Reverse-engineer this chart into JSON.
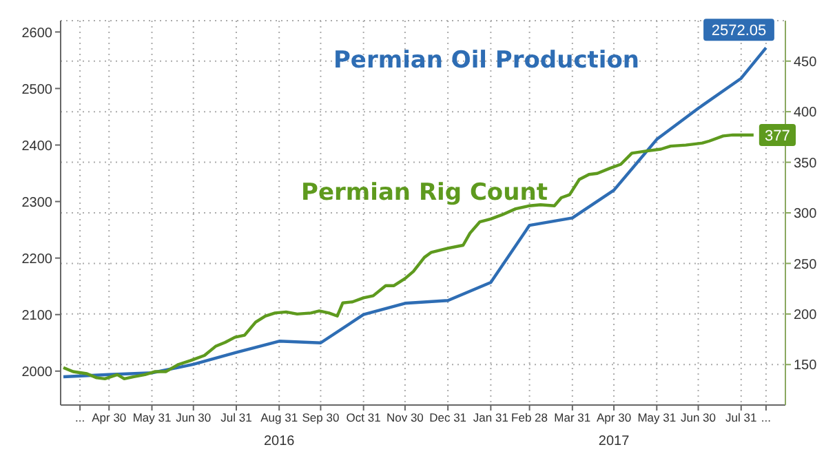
{
  "chart_data": {
    "type": "line",
    "x": [
      "2016-03-28",
      "2016-04-30",
      "2016-05-31",
      "2016-06-30",
      "2016-07-31",
      "2016-08-31",
      "2016-09-30",
      "2016-10-31",
      "2016-11-30",
      "2016-12-31",
      "2017-01-31",
      "2017-02-28",
      "2017-03-31",
      "2017-04-30",
      "2017-05-31",
      "2017-06-30",
      "2017-07-31",
      "2017-08-18"
    ],
    "series": [
      {
        "name": "Permian Oil Production",
        "color": "#2e6db4",
        "values": [
          1990,
          1994,
          1997,
          2012,
          2033,
          2053,
          2050,
          2100,
          2120,
          2125,
          2157,
          2258,
          2271,
          2320,
          2410,
          2465,
          2518,
          2572.05
        ],
        "value_labels": [
          null,
          null,
          null,
          null,
          null,
          null,
          null,
          null,
          null,
          null,
          null,
          null,
          null,
          null,
          null,
          null,
          null,
          "2572.05"
        ]
      },
      {
        "name": "Permian Rig Count",
        "color": "#5e9a1e",
        "axis": "y2",
        "x": [
          "2016-03-28",
          "2016-04-04",
          "2016-04-14",
          "2016-04-21",
          "2016-04-27",
          "2016-05-06",
          "2016-05-11",
          "2016-05-18",
          "2016-05-26",
          "2016-06-02",
          "2016-06-10",
          "2016-06-19",
          "2016-06-28",
          "2016-07-08",
          "2016-07-16",
          "2016-07-23",
          "2016-07-30",
          "2016-08-06",
          "2016-08-14",
          "2016-08-21",
          "2016-08-28",
          "2016-09-05",
          "2016-09-13",
          "2016-09-23",
          "2016-09-29",
          "2016-10-06",
          "2016-10-12",
          "2016-10-16",
          "2016-10-23",
          "2016-10-31",
          "2016-11-07",
          "2016-11-16",
          "2016-11-22",
          "2016-11-30",
          "2016-12-06",
          "2016-12-14",
          "2016-12-19",
          "2016-12-31",
          "2017-01-11",
          "2017-01-16",
          "2017-01-23",
          "2017-01-31",
          "2017-02-08",
          "2017-02-18",
          "2017-02-28",
          "2017-03-08",
          "2017-03-18",
          "2017-03-23",
          "2017-03-29",
          "2017-04-05",
          "2017-04-12",
          "2017-04-18",
          "2017-04-27",
          "2017-05-05",
          "2017-05-13",
          "2017-05-23",
          "2017-06-03",
          "2017-06-10",
          "2017-06-21",
          "2017-07-03",
          "2017-07-08",
          "2017-07-18",
          "2017-07-25",
          "2017-08-04",
          "2017-08-09"
        ],
        "values": [
          147,
          143,
          141,
          137,
          136,
          140,
          136,
          138,
          140,
          143,
          143,
          150,
          154,
          159,
          168,
          172,
          177,
          179,
          192,
          198,
          201,
          202,
          200,
          201,
          203,
          201,
          198,
          211,
          212,
          216,
          218,
          228,
          228,
          235,
          242,
          256,
          261,
          265,
          268,
          280,
          291,
          294,
          298,
          304,
          307,
          308,
          307,
          315,
          318,
          333,
          338,
          339,
          344,
          348,
          359,
          361,
          363,
          366,
          367,
          369,
          371,
          376,
          377,
          377,
          377
        ],
        "value_labels": [
          null,
          null,
          null,
          null,
          null,
          null,
          null,
          null,
          null,
          null,
          null,
          null,
          null,
          null,
          null,
          null,
          null,
          null,
          null,
          null,
          null,
          null,
          null,
          null,
          null,
          null,
          null,
          null,
          null,
          null,
          null,
          null,
          null,
          null,
          null,
          null,
          null,
          null,
          null,
          null,
          null,
          null,
          null,
          null,
          null,
          null,
          null,
          null,
          null,
          null,
          null,
          null,
          null,
          null,
          null,
          null,
          null,
          null,
          null,
          null,
          null,
          null,
          null,
          null,
          "377"
        ]
      }
    ],
    "xlim": [
      "2016-03-26",
      "2017-09-01"
    ],
    "xticks": [
      {
        "value": "2016-04-09",
        "label": "..."
      },
      {
        "value": "2016-04-30",
        "label": "Apr 30"
      },
      {
        "value": "2016-05-31",
        "label": "May 31"
      },
      {
        "value": "2016-06-30",
        "label": "Jun 30"
      },
      {
        "value": "2016-07-31",
        "label": "Jul 31"
      },
      {
        "value": "2016-08-31",
        "label": "Aug 31"
      },
      {
        "value": "2016-09-30",
        "label": "Sep 30"
      },
      {
        "value": "2016-10-31",
        "label": "Oct 31"
      },
      {
        "value": "2016-11-30",
        "label": "Nov 30"
      },
      {
        "value": "2016-12-31",
        "label": "Dec 31"
      },
      {
        "value": "2017-01-31",
        "label": "Jan 31"
      },
      {
        "value": "2017-02-28",
        "label": "Feb 28"
      },
      {
        "value": "2017-03-31",
        "label": "Mar 31"
      },
      {
        "value": "2017-04-30",
        "label": "Apr 30"
      },
      {
        "value": "2017-05-31",
        "label": "May 31"
      },
      {
        "value": "2017-06-30",
        "label": "Jun 30"
      },
      {
        "value": "2017-07-31",
        "label": "Jul 31"
      },
      {
        "value": "2017-08-18",
        "label": "..."
      }
    ],
    "ylim": [
      1940,
      2620
    ],
    "yticks": [
      2000,
      2100,
      2200,
      2300,
      2400,
      2500,
      2600
    ],
    "y2lim": [
      110,
      490
    ],
    "y2ticks": [
      150,
      200,
      250,
      300,
      350,
      400,
      450
    ],
    "annotations": [
      "2016",
      "2017"
    ],
    "grid": true,
    "legend": false,
    "marker": "none",
    "line_style": "solid"
  }
}
